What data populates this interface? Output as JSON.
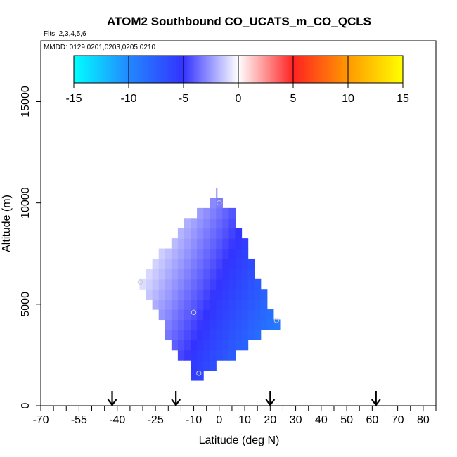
{
  "chart_data": {
    "type": "heatmap",
    "title": "ATOM2 Southbound CO_UCATS_m_CO_QCLS",
    "flights_label": "Flts: 2,3,4,5,6",
    "dates_label": "MMDD: 0129,0201,0203,0205,0210",
    "xlabel": "Latitude (deg N)",
    "ylabel": "Altitude (m)",
    "xlim": [
      -70,
      85
    ],
    "ylim": [
      0,
      18000
    ],
    "x_tick_labels": [
      "-70",
      "-55",
      "-40",
      "-25",
      "-10",
      "0",
      "10",
      "20",
      "30",
      "40",
      "50",
      "60",
      "70",
      "80"
    ],
    "y_tick_labels": [
      "0",
      "5000",
      "10000",
      "15000"
    ],
    "colorbar": {
      "range": [
        -15,
        15
      ],
      "tick_labels": [
        "-15",
        "-10",
        "-5",
        "0",
        "5",
        "10",
        "15"
      ],
      "stops": [
        {
          "value": -15,
          "color": "#00ffff"
        },
        {
          "value": -10,
          "color": "#2288ff"
        },
        {
          "value": -5,
          "color": "#3333ff"
        },
        {
          "value": 0,
          "color": "#ffffff"
        },
        {
          "value": 5,
          "color": "#ff2222"
        },
        {
          "value": 10,
          "color": "#ff9900"
        },
        {
          "value": 15,
          "color": "#ffff00"
        }
      ]
    },
    "field": {
      "description_free": true,
      "lat_step": 2.5,
      "alt_step": 500,
      "rows": [
        {
          "alt": 1500,
          "lat_min": -10,
          "lat_max": -7.5
        },
        {
          "alt": 2000,
          "lat_min": -10,
          "lat_max": -2.5
        },
        {
          "alt": 2500,
          "lat_min": -15,
          "lat_max": 5
        },
        {
          "alt": 3000,
          "lat_min": -17.5,
          "lat_max": 10
        },
        {
          "alt": 3500,
          "lat_min": -20,
          "lat_max": 15
        },
        {
          "alt": 4000,
          "lat_min": -20,
          "lat_max": 22.5
        },
        {
          "alt": 4500,
          "lat_min": -22.5,
          "lat_max": 20
        },
        {
          "alt": 5000,
          "lat_min": -25,
          "lat_max": 17.5
        },
        {
          "alt": 5500,
          "lat_min": -27.5,
          "lat_max": 17.5
        },
        {
          "alt": 6000,
          "lat_min": -30,
          "lat_max": 15
        },
        {
          "alt": 6500,
          "lat_min": -27.5,
          "lat_max": 12.5
        },
        {
          "alt": 7000,
          "lat_min": -25,
          "lat_max": 12.5
        },
        {
          "alt": 7500,
          "lat_min": -22.5,
          "lat_max": 10
        },
        {
          "alt": 8000,
          "lat_min": -17.5,
          "lat_max": 10
        },
        {
          "alt": 8500,
          "lat_min": -15,
          "lat_max": 7.5
        },
        {
          "alt": 9000,
          "lat_min": -12.5,
          "lat_max": 5
        },
        {
          "alt": 9500,
          "lat_min": -7.5,
          "lat_max": 5
        },
        {
          "alt": 10000,
          "lat_min": -2.5,
          "lat_max": 0
        },
        {
          "alt": 10500,
          "lat_min": 0,
          "lat_max": 0
        }
      ],
      "value_model": {
        "base": -5.5,
        "lat_gradient": -0.14,
        "alt_gradient": 0.00045,
        "clamp_min": -10.5
      }
    },
    "points": [
      {
        "lat": -31,
        "alt": 6100
      },
      {
        "lat": -10,
        "alt": 4600
      },
      {
        "lat": -8,
        "alt": 1600
      },
      {
        "lat": 22.5,
        "alt": 4200
      },
      {
        "lat": 0,
        "alt": 10000
      }
    ],
    "arrows_lat": [
      -42,
      -17,
      20,
      61.5
    ]
  }
}
